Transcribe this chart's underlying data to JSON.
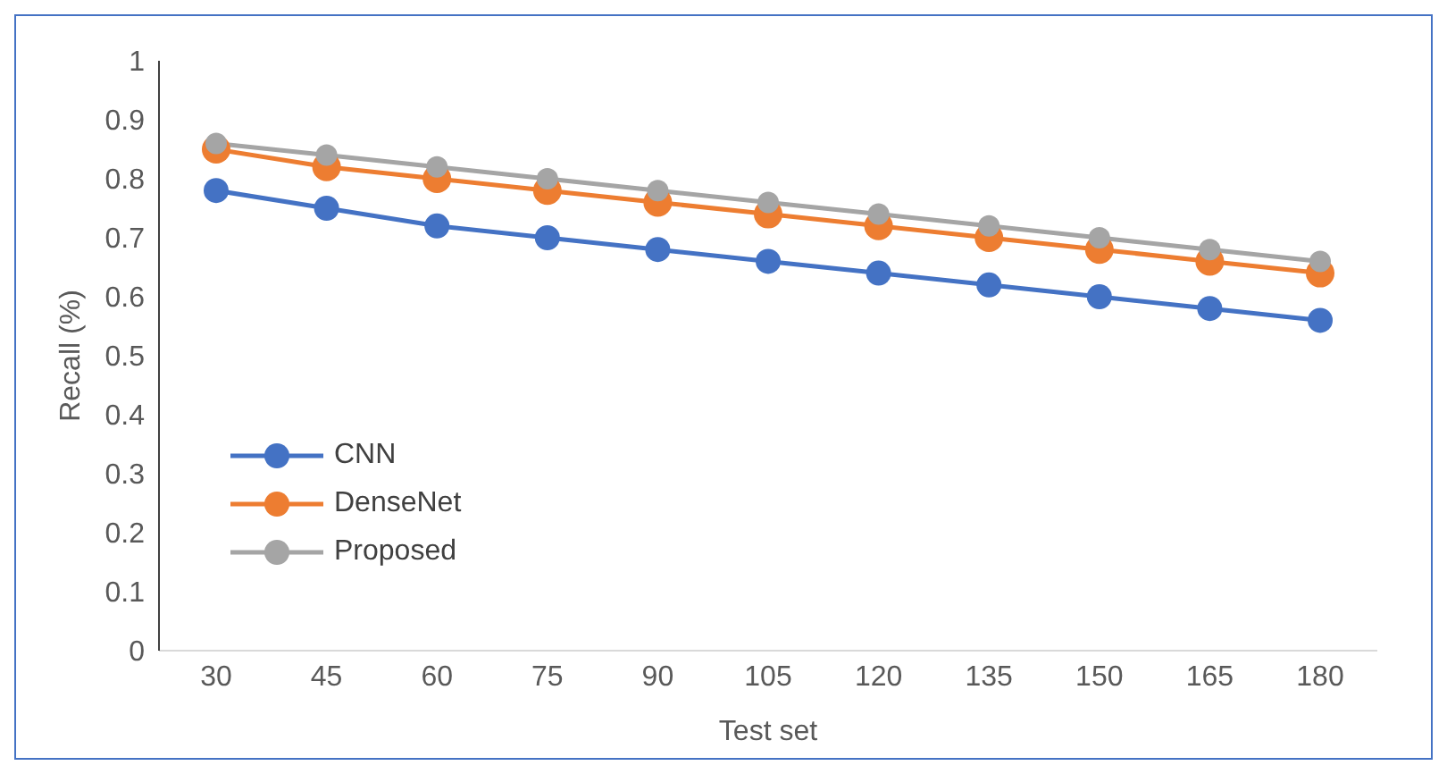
{
  "chart_data": {
    "type": "line",
    "xlabel": "Test set",
    "ylabel": "Recall (%)",
    "categories": [
      "30",
      "45",
      "60",
      "75",
      "90",
      "105",
      "120",
      "135",
      "150",
      "165",
      "180"
    ],
    "series": [
      {
        "name": "CNN",
        "color": "#4472c4",
        "values": [
          0.78,
          0.75,
          0.72,
          0.7,
          0.68,
          0.66,
          0.64,
          0.62,
          0.6,
          0.58,
          0.56
        ]
      },
      {
        "name": "DenseNet",
        "color": "#ed7d31",
        "values": [
          0.85,
          0.82,
          0.8,
          0.78,
          0.76,
          0.74,
          0.72,
          0.7,
          0.68,
          0.66,
          0.64
        ]
      },
      {
        "name": "Proposed",
        "color": "#a5a5a5",
        "values": [
          0.86,
          0.84,
          0.82,
          0.8,
          0.78,
          0.76,
          0.74,
          0.72,
          0.7,
          0.68,
          0.66
        ]
      }
    ],
    "ylim": [
      0,
      1
    ],
    "yticks": [
      0,
      0.1,
      0.2,
      0.3,
      0.4,
      0.5,
      0.6,
      0.7,
      0.8,
      0.9,
      1
    ],
    "grid": false,
    "legend": "left",
    "marker": "circle",
    "line_style": "solid"
  }
}
